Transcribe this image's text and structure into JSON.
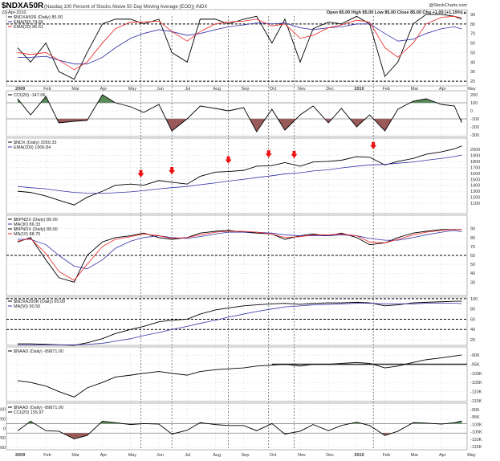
{
  "header": {
    "symbol": "$NDXA50R",
    "description": "(Nasdaq 100 Percent of Stocks Above 50 Day Moving Average (EOD)) INDX",
    "date": "23-Apr-2010",
    "ohlc": "Open 85.00  High 85.00  Low 85.00  Close 85.00  Chg +1.00 (+1.19%)▲",
    "watermark": "@StockCharts.com"
  },
  "colors": {
    "price": "#000000",
    "ma_blue": "#3333aa",
    "ma_red": "#ee2222",
    "cci_up": "#5a8a5a",
    "cci_down": "#9a5a5a",
    "arrow": "#ee1111"
  },
  "chart_data": {
    "type": "line",
    "dates": [
      "2009-01-01",
      "2009-01-15",
      "2009-02-01",
      "2009-02-15",
      "2009-03-01",
      "2009-03-15",
      "2009-04-01",
      "2009-04-15",
      "2009-05-01",
      "2009-05-15",
      "2009-06-01",
      "2009-06-15",
      "2009-07-01",
      "2009-07-15",
      "2009-08-01",
      "2009-08-15",
      "2009-09-01",
      "2009-09-15",
      "2009-10-01",
      "2009-10-15",
      "2009-11-01",
      "2009-11-15",
      "2009-12-01",
      "2009-12-15",
      "2010-01-01",
      "2010-01-15",
      "2010-02-01",
      "2010-02-15",
      "2010-03-01",
      "2010-03-15",
      "2010-04-01",
      "2010-04-15",
      "2010-04-23"
    ],
    "month_labels": [
      {
        "date": "2009-01-01",
        "label": "2009"
      },
      {
        "date": "2009-02-01",
        "label": "Feb"
      },
      {
        "date": "2009-03-01",
        "label": "Mar"
      },
      {
        "date": "2009-04-01",
        "label": "Apr"
      },
      {
        "date": "2009-05-01",
        "label": "May"
      },
      {
        "date": "2009-06-01",
        "label": "Jun"
      },
      {
        "date": "2009-07-01",
        "label": "Jul"
      },
      {
        "date": "2009-08-01",
        "label": "Aug"
      },
      {
        "date": "2009-09-01",
        "label": "Sep"
      },
      {
        "date": "2009-10-01",
        "label": "Oct"
      },
      {
        "date": "2009-11-01",
        "label": "Nov"
      },
      {
        "date": "2009-12-01",
        "label": "Dec"
      },
      {
        "date": "2010-01-01",
        "label": "2010"
      },
      {
        "date": "2010-02-01",
        "label": "Feb"
      },
      {
        "date": "2010-03-01",
        "label": "Mar"
      },
      {
        "date": "2010-04-01",
        "label": "Apr"
      },
      {
        "date": "2010-05-01",
        "label": "May"
      }
    ],
    "marker_dates": [
      "2009-05-12",
      "2009-06-15",
      "2009-08-15",
      "2009-09-28",
      "2009-10-25",
      "2010-01-19"
    ],
    "panels": [
      {
        "id": "ndxa50r",
        "ylim": [
          15,
          95
        ],
        "ticks": [
          90,
          80,
          70,
          60,
          50,
          40,
          30,
          20
        ],
        "dashed": [
          80,
          20
        ],
        "legend": [
          "$NDXA50R (Daily) 85.00",
          "EMA(50) 74.66",
          "EMA(20) 86.51"
        ],
        "series": [
          {
            "name": "$NDXA50R (Daily) 85.00",
            "color": "#000000",
            "values": [
              55,
              40,
              60,
              30,
              22,
              50,
              80,
              85,
              85,
              80,
              85,
              50,
              40,
              85,
              85,
              80,
              85,
              88,
              60,
              85,
              40,
              75,
              82,
              80,
              88,
              80,
              25,
              40,
              80,
              90,
              90,
              88,
              85
            ]
          },
          {
            "name": "EMA(50) 74.66",
            "color": "#3333aa",
            "values": [
              45,
              45,
              46,
              42,
              38,
              38,
              45,
              55,
              65,
              70,
              74,
              72,
              68,
              70,
              74,
              77,
              79,
              81,
              80,
              81,
              76,
              74,
              76,
              77,
              80,
              80,
              70,
              62,
              64,
              70,
              75,
              77,
              74.66
            ]
          },
          {
            "name": "EMA(20) 86.51",
            "color": "#ee2222",
            "values": [
              50,
              48,
              50,
              42,
              32,
              40,
              60,
              75,
              82,
              82,
              83,
              72,
              62,
              72,
              80,
              82,
              83,
              85,
              78,
              80,
              65,
              68,
              76,
              79,
              84,
              82,
              55,
              45,
              60,
              80,
              87,
              88,
              86.51
            ]
          }
        ]
      },
      {
        "id": "cci-ndxa50r",
        "ylim": [
          -320,
          250
        ],
        "ticks": [
          200,
          100,
          0,
          -100,
          -200,
          -300
        ],
        "solid": [
          100,
          -100
        ],
        "cci": true,
        "month_axis": true,
        "legend": [
          "CCI(20) -147.06"
        ],
        "series": [
          {
            "name": "CCI(20) -147.06",
            "color": "#000000",
            "values": [
              150,
              -50,
              180,
              -150,
              -130,
              -120,
              200,
              100,
              50,
              -20,
              80,
              -250,
              -100,
              60,
              30,
              0,
              40,
              -260,
              20,
              -240,
              -50,
              60,
              -150,
              30,
              -200,
              -50,
              -250,
              20,
              120,
              150,
              80,
              60,
              -147.06
            ]
          }
        ]
      },
      {
        "id": "ndx",
        "ylim": [
          925,
          2190
        ],
        "ticks": [
          2000,
          1900,
          1800,
          1700,
          1600,
          1500,
          1400,
          1300,
          1200,
          1100
        ],
        "arrows": true,
        "legend": [
          "$NDX (Daily) 2059.33",
          "EMA(200) 1906.84"
        ],
        "series": [
          {
            "name": "$NDX (Daily) 2059.33",
            "color": "#000000",
            "values": [
              1300,
              1280,
              1220,
              1150,
              1070,
              1200,
              1300,
              1400,
              1420,
              1400,
              1480,
              1450,
              1420,
              1550,
              1620,
              1630,
              1650,
              1720,
              1730,
              1780,
              1720,
              1790,
              1800,
              1820,
              1880,
              1870,
              1740,
              1800,
              1850,
              1920,
              1960,
              2010,
              2059.33
            ]
          },
          {
            "name": "EMA(200) 1906.84",
            "color": "#3333aa",
            "values": [
              1380,
              1360,
              1340,
              1310,
              1280,
              1270,
              1265,
              1275,
              1290,
              1310,
              1340,
              1360,
              1380,
              1410,
              1440,
              1470,
              1500,
              1530,
              1560,
              1590,
              1610,
              1640,
              1660,
              1690,
              1720,
              1740,
              1750,
              1770,
              1790,
              1820,
              1850,
              1880,
              1906.84
            ]
          }
        ]
      },
      {
        "id": "bpndx",
        "ylim": [
          15,
          105
        ],
        "ticks": [
          90,
          80,
          70,
          60,
          50,
          40,
          30
        ],
        "dashed": [
          60
        ],
        "legend": [
          "$BPNDX (Daily) 89.00",
          "MA(30) 86.33",
          "$BPNDX (Daily) 89.00",
          "MA(10) 88.75"
        ],
        "series": [
          {
            "name": "$BPNDX (Daily) 89.00",
            "color": "#000000",
            "values": [
              75,
              80,
              55,
              35,
              30,
              60,
              75,
              80,
              82,
              85,
              80,
              78,
              80,
              85,
              87,
              88,
              86,
              85,
              84,
              78,
              82,
              84,
              82,
              85,
              80,
              72,
              74,
              80,
              85,
              87,
              89,
              89,
              89
            ]
          },
          {
            "name": "MA(30) 86.33",
            "color": "#3333aa",
            "values": [
              78,
              78,
              72,
              60,
              48,
              45,
              55,
              68,
              76,
              80,
              82,
              80,
              79,
              81,
              84,
              86,
              86,
              86,
              85,
              83,
              82,
              82,
              82,
              83,
              82,
              79,
              77,
              77,
              80,
              83,
              86,
              88,
              86.33
            ]
          },
          {
            "name": "MA(10) 88.75",
            "color": "#ee2222",
            "values": [
              76,
              79,
              62,
              42,
              32,
              50,
              70,
              78,
              81,
              84,
              82,
              79,
              80,
              83,
              86,
              87,
              87,
              86,
              84,
              80,
              81,
              83,
              83,
              84,
              82,
              75,
              74,
              78,
              83,
              86,
              88,
              89,
              88.75
            ]
          }
        ]
      },
      {
        "id": "ndxa200r",
        "ylim": [
          9,
          103
        ],
        "ticks": [
          100,
          80,
          60,
          40,
          20
        ],
        "dashed": [
          100,
          60,
          40
        ],
        "legend": [
          "$NDXA200R (Daily) 95.00",
          "MA(50) 90.50"
        ],
        "series": [
          {
            "name": "$NDXA200R (Daily) 95.00",
            "color": "#000000",
            "values": [
              12,
              12,
              11,
              10,
              9,
              14,
              22,
              32,
              40,
              46,
              55,
              58,
              60,
              70,
              78,
              82,
              86,
              88,
              90,
              91,
              89,
              91,
              92,
              92,
              93,
              92,
              86,
              88,
              92,
              93,
              94,
              95,
              95
            ]
          },
          {
            "name": "MA(50) 90.50",
            "color": "#3333aa",
            "values": [
              10,
              10,
              10,
              10,
              10,
              11,
              13,
              17,
              22,
              28,
              34,
              40,
              46,
              52,
              58,
              64,
              70,
              75,
              80,
              84,
              86,
              88,
              89,
              90,
              91,
              91,
              90,
              90,
              90,
              91,
              91,
              91,
              90.5
            ]
          }
        ]
      },
      {
        "id": "naad",
        "ylim": [
          -115500,
          -85500
        ],
        "ticks": [
          -90000,
          -95000,
          -100000,
          -105000,
          -110000,
          -115000
        ],
        "tick_labels": [
          "-90K",
          "-95K",
          "-100K",
          "-105K",
          "-110K",
          "-115K"
        ],
        "level_line": {
          "value": -95000,
          "from": "2009-10-01"
        },
        "legend": [
          "$NAAD (Daily) -89871.00"
        ],
        "series": [
          {
            "name": "$NAAD (Daily) -89871.00",
            "color": "#000000",
            "values": [
              -104000,
              -105000,
              -107000,
              -110000,
              -113000,
              -108000,
              -105000,
              -102000,
              -101000,
              -100000,
              -99000,
              -100000,
              -101000,
              -99000,
              -98000,
              -97500,
              -97000,
              -96000,
              -95500,
              -95000,
              -96000,
              -95000,
              -95000,
              -94500,
              -94000,
              -94500,
              -97000,
              -96000,
              -94000,
              -92500,
              -91500,
              -90500,
              -89871
            ]
          }
        ]
      },
      {
        "id": "cci-naad",
        "ylim": [
          -450,
          530
        ],
        "left_ticks": [
          400,
          200,
          0,
          -200,
          -400
        ],
        "solid": [
          100,
          -100
        ],
        "cci": true,
        "month_axis": true,
        "right_labels": [
          "-90K",
          "-95K",
          "-100K",
          "-105K",
          "-110K",
          "-115K"
        ],
        "legend": [
          "$NAAD (Daily) -89871.00",
          "CCI(20) 155.97"
        ],
        "series": [
          {
            "name": "CCI(20) 155.97",
            "color": "#000000",
            "values": [
              -50,
              150,
              -50,
              -60,
              -220,
              -150,
              150,
              120,
              80,
              100,
              90,
              -120,
              -40,
              120,
              80,
              60,
              60,
              -50,
              100,
              -120,
              -60,
              80,
              -50,
              60,
              130,
              60,
              -150,
              -60,
              120,
              110,
              90,
              120,
              155.97
            ]
          }
        ]
      }
    ]
  }
}
